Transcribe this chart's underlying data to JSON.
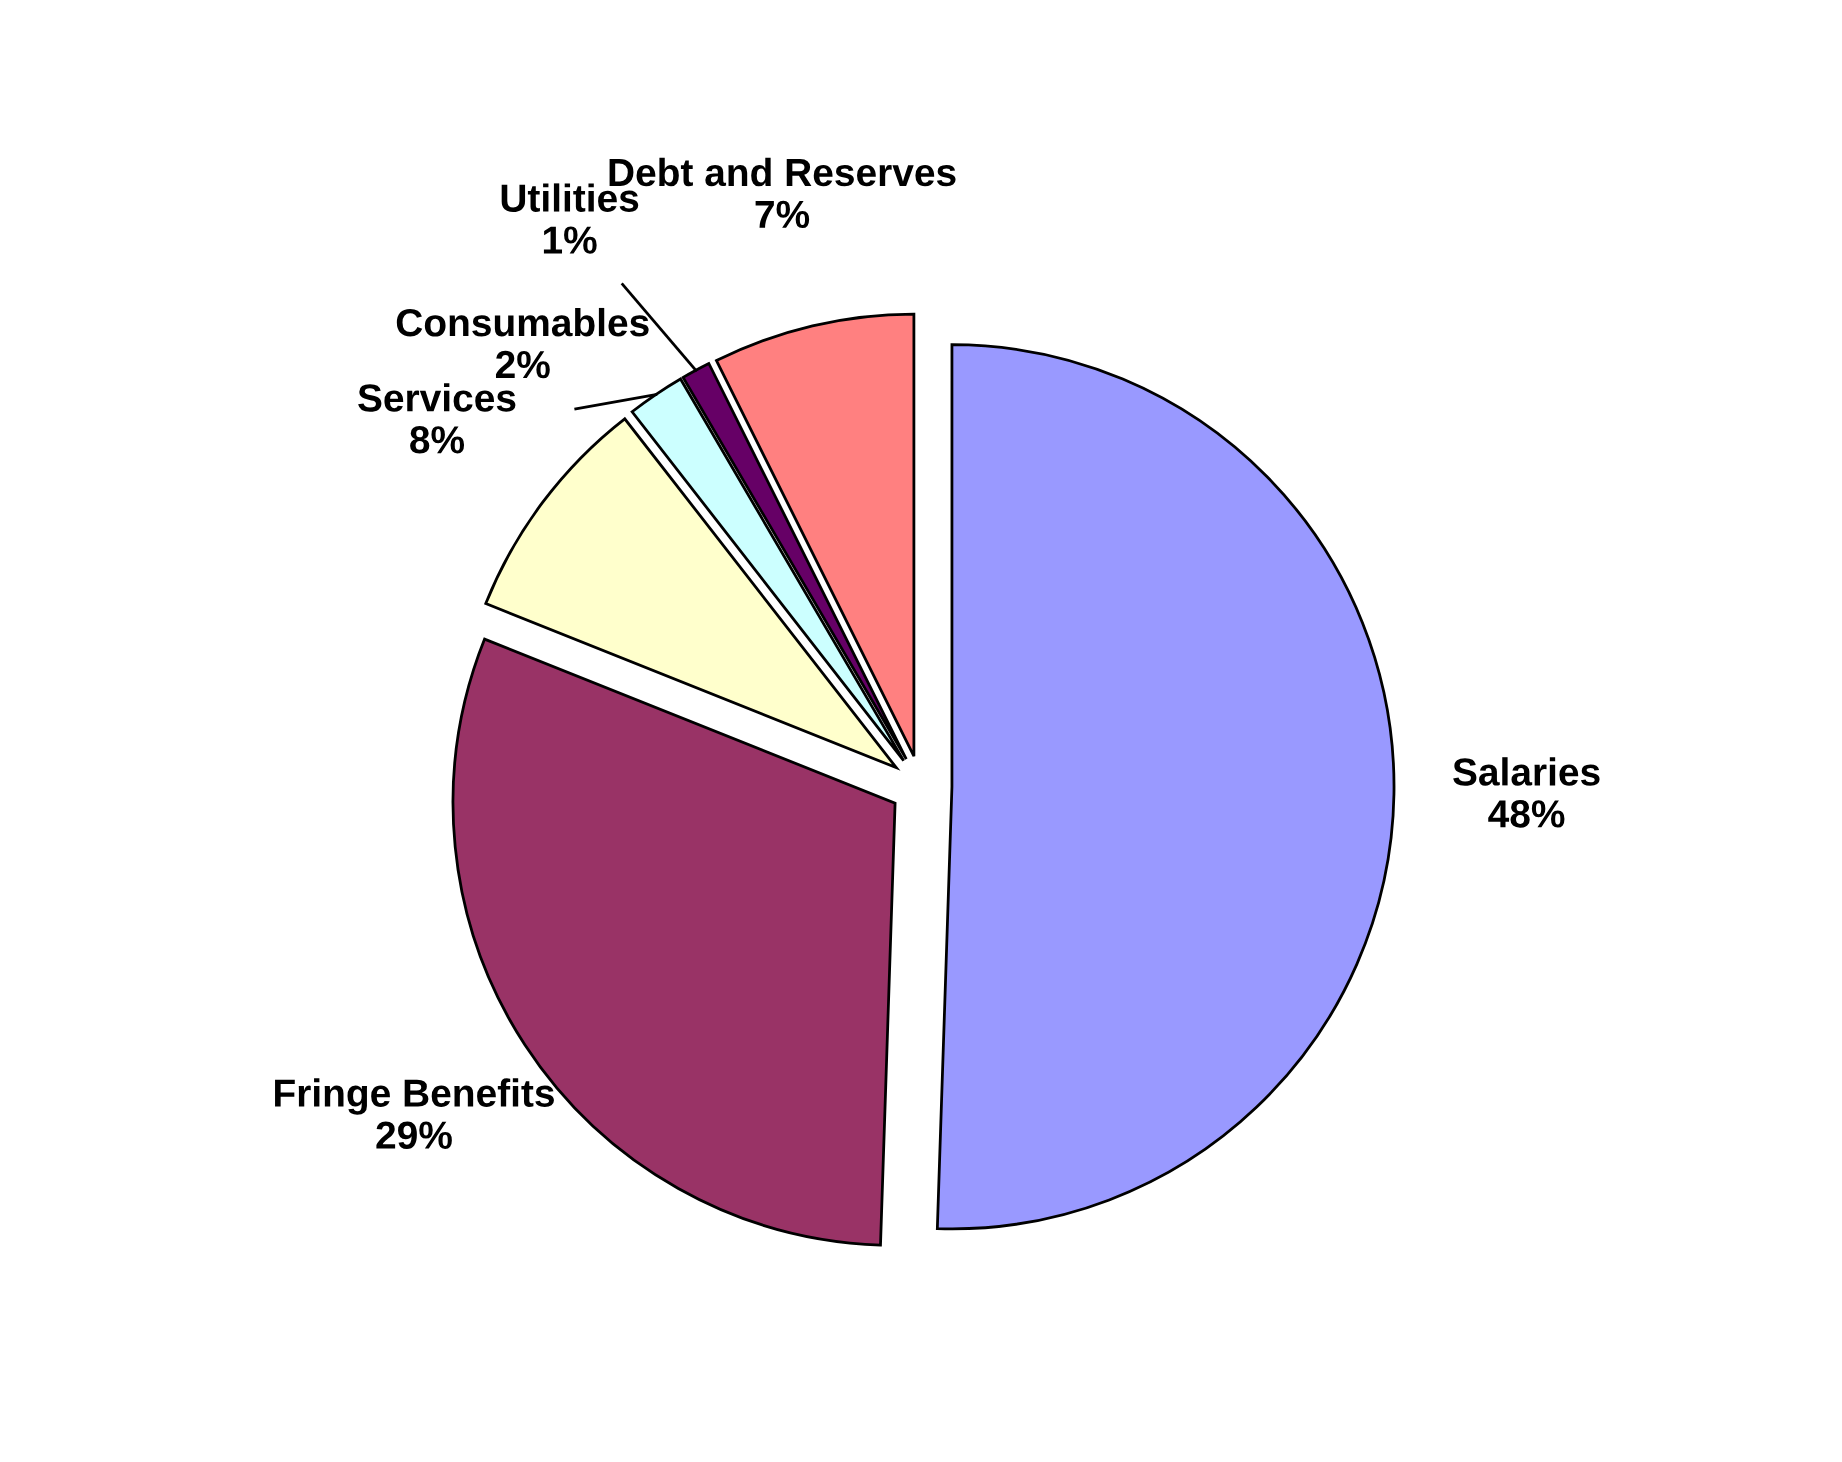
{
  "chart_data": {
    "type": "pie",
    "categories": [
      "Salaries",
      "Fringe Benefits",
      "Services",
      "Consumables",
      "Utilities",
      "Debt and Reserves"
    ],
    "values": [
      48,
      29,
      8,
      2,
      1,
      7
    ],
    "value_labels": [
      "48%",
      "29%",
      "8%",
      "2%",
      "1%",
      "7%"
    ],
    "colors": [
      "#9999ff",
      "#993366",
      "#ffffcc",
      "#ccffff",
      "#660066",
      "#ff8080"
    ]
  }
}
